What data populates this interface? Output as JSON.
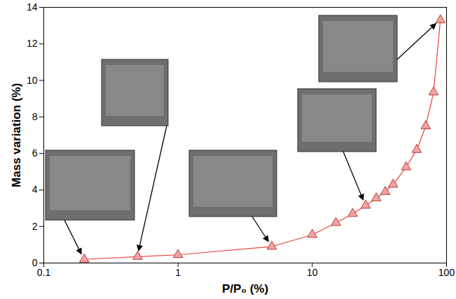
{
  "chart_data": {
    "type": "line",
    "xlabel": "P/P₀ (%)",
    "ylabel": "Mass variation (%)",
    "x": [
      0.2,
      0.5,
      1,
      5,
      10,
      15,
      20,
      25,
      30,
      35,
      40,
      50,
      60,
      70,
      80,
      90
    ],
    "values": [
      0.2,
      0.35,
      0.45,
      0.9,
      1.55,
      2.2,
      2.7,
      3.15,
      3.55,
      3.9,
      4.3,
      5.25,
      6.2,
      7.5,
      9.35,
      13.3
    ],
    "color": "#e8403a",
    "marker": "triangle",
    "log": "x",
    "xlim": [
      0.1,
      100
    ],
    "xticks": [
      0.1,
      1,
      10,
      100
    ],
    "ylim": [
      0,
      14
    ],
    "yticks": [
      0,
      2,
      4,
      6,
      8,
      10,
      12,
      14
    ]
  }
}
